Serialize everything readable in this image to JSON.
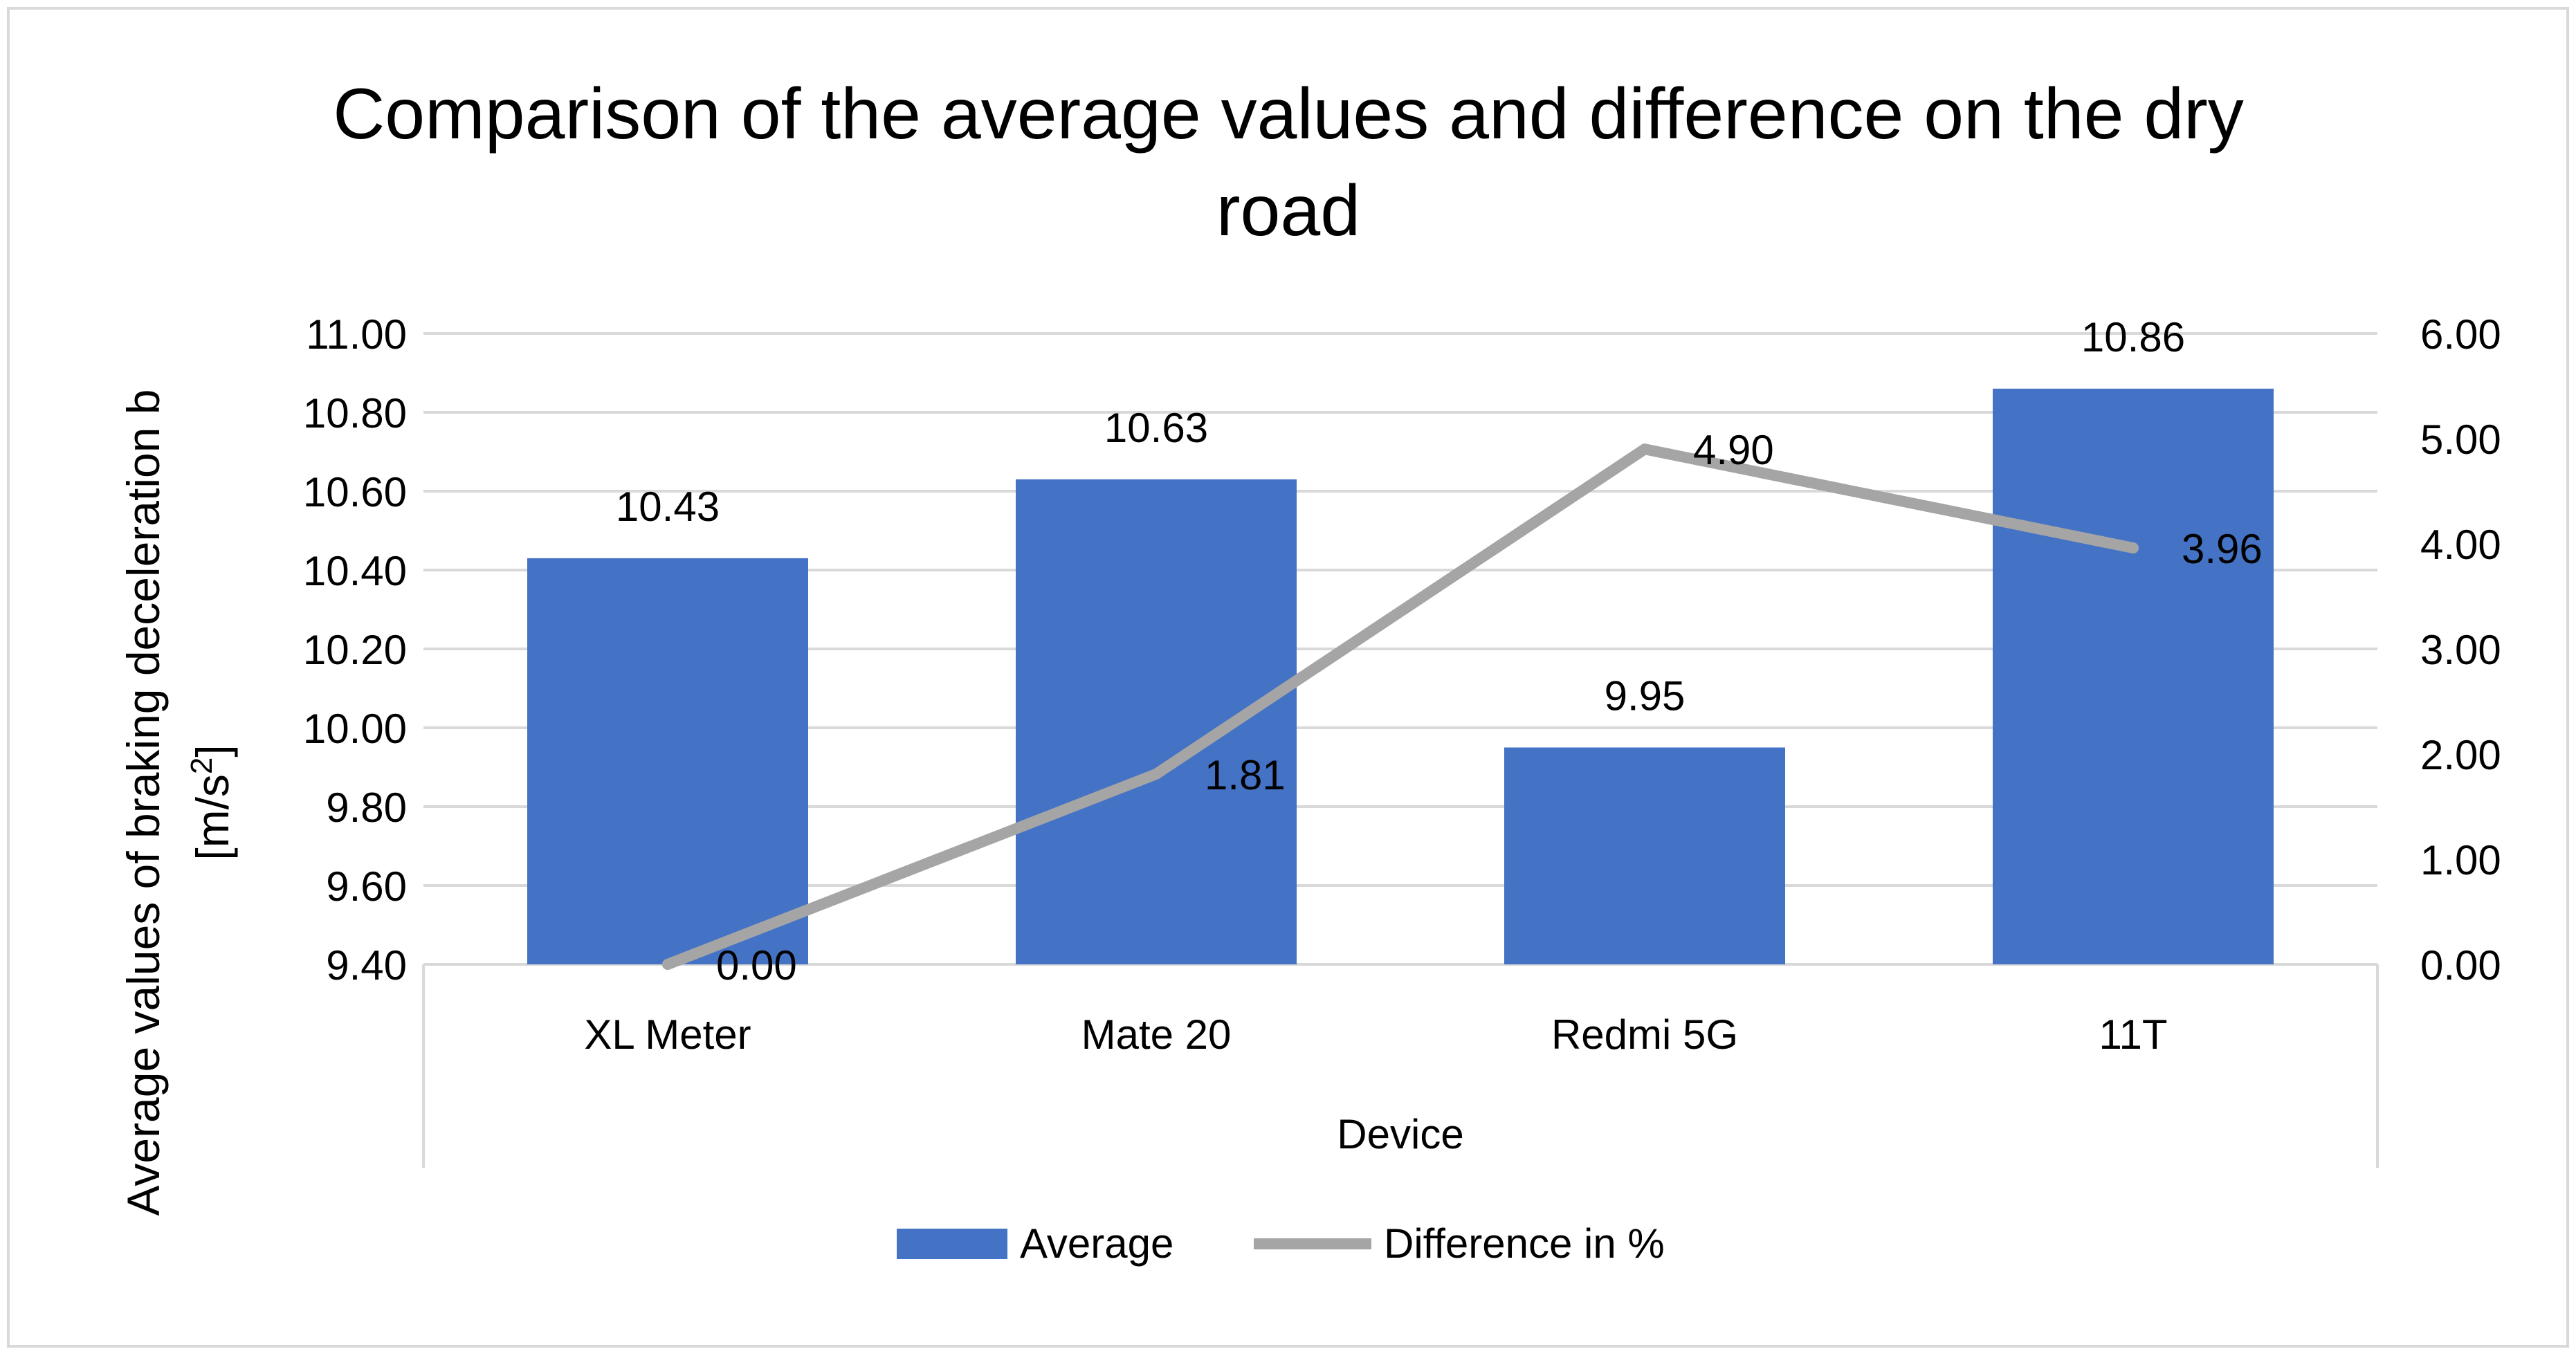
{
  "chart_data": {
    "type": "bar",
    "title": "Comparison of the average values and difference on the dry road",
    "title_lines": [
      "Comparison of the average values and difference on the dry",
      "road"
    ],
    "xlabel": "Device",
    "ylabel": "Average values of braking deceleration b",
    "ylabel_unit": "[m/s",
    "ylabel_unit_sup": "2",
    "ylabel_unit_close": "]",
    "y2label": "",
    "categories": [
      "XL Meter",
      "Mate 20",
      "Redmi 5G",
      "11T"
    ],
    "ylim": [
      9.4,
      11.0
    ],
    "yticks": [
      "9.40",
      "9.60",
      "9.80",
      "10.00",
      "10.20",
      "10.40",
      "10.60",
      "10.80",
      "11.00"
    ],
    "y2lim": [
      0,
      6
    ],
    "y2ticks": [
      "0.00",
      "1.00",
      "2.00",
      "3.00",
      "4.00",
      "5.00",
      "6.00"
    ],
    "grid": true,
    "legend_position": "bottom",
    "series": [
      {
        "name": "Average",
        "type": "bar",
        "axis": "left",
        "color": "#4472C4",
        "values": [
          10.43,
          10.63,
          9.95,
          10.86
        ],
        "labels": [
          "10.43",
          "10.63",
          "9.95",
          "10.86"
        ]
      },
      {
        "name": "Difference in %",
        "type": "line",
        "axis": "right",
        "color": "#A5A5A5",
        "values": [
          0.0,
          1.81,
          4.9,
          3.96
        ],
        "labels": [
          "0.00",
          "1.81",
          "4.90",
          "3.96"
        ]
      }
    ]
  }
}
